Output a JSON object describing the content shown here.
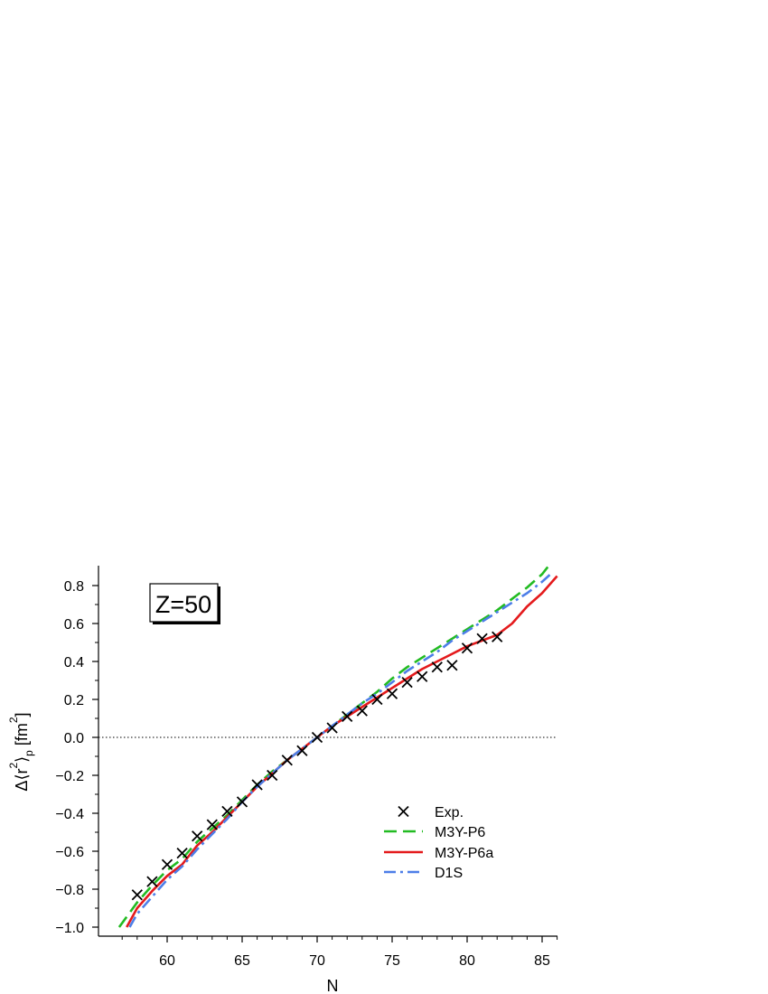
{
  "chart_data": {
    "type": "line",
    "title": "",
    "annotation": "Z=50",
    "xlabel": "N",
    "ylabel": {
      "main": "Δ⟨r",
      "sup1": "2",
      "close": "⟩",
      "sub": "p",
      "unit_open": " [fm",
      "sup2": "2",
      "unit_close": "]"
    },
    "xlim": [
      56,
      86
    ],
    "ylim": [
      -1.05,
      0.9
    ],
    "x_ticks": [
      60,
      65,
      70,
      75,
      80,
      85
    ],
    "x_tick_labels": [
      "60",
      "65",
      "70",
      "75",
      "80",
      "85"
    ],
    "y_ticks": [
      -1.0,
      -0.8,
      -0.6,
      -0.4,
      -0.2,
      0.0,
      0.2,
      0.4,
      0.6,
      0.8
    ],
    "y_tick_labels": [
      "−1.0",
      "−0.8",
      "−0.6",
      "−0.4",
      "−0.2",
      "0.0",
      "0.2",
      "0.4",
      "0.6",
      "0.8"
    ],
    "reference_line": {
      "y": 0,
      "style": "dotted"
    },
    "legend_position": "lower-right",
    "series": [
      {
        "name": "Exp.",
        "kind": "scatter",
        "marker": "x",
        "color": "#000000",
        "x": [
          58,
          59,
          60,
          61,
          62,
          63,
          64,
          65,
          66,
          67,
          68,
          69,
          70,
          71,
          72,
          73,
          74,
          75,
          76,
          77,
          78,
          79,
          80,
          81,
          82
        ],
        "y": [
          -0.83,
          -0.76,
          -0.67,
          -0.61,
          -0.52,
          -0.46,
          -0.39,
          -0.34,
          -0.25,
          -0.2,
          -0.12,
          -0.07,
          0.0,
          0.05,
          0.11,
          0.14,
          0.2,
          0.23,
          0.29,
          0.32,
          0.37,
          0.38,
          0.47,
          0.52,
          0.53
        ]
      },
      {
        "name": "M3Y-P6",
        "kind": "line",
        "style": "dashed",
        "color": "#22bb22",
        "x": [
          56.8,
          58,
          59,
          60,
          61,
          62,
          63,
          64,
          65,
          66,
          67,
          68,
          69,
          70,
          71,
          72,
          73,
          74,
          75,
          76,
          77,
          78,
          79,
          80,
          81,
          82,
          83,
          84,
          85,
          85.4
        ],
        "y": [
          -1.0,
          -0.87,
          -0.78,
          -0.7,
          -0.64,
          -0.55,
          -0.48,
          -0.41,
          -0.33,
          -0.25,
          -0.18,
          -0.12,
          -0.06,
          0.0,
          0.06,
          0.12,
          0.18,
          0.24,
          0.31,
          0.37,
          0.42,
          0.47,
          0.52,
          0.57,
          0.62,
          0.67,
          0.73,
          0.79,
          0.86,
          0.9
        ]
      },
      {
        "name": "M3Y-P6a",
        "kind": "line",
        "style": "solid",
        "color": "#e41a1c",
        "x": [
          57.3,
          58,
          59,
          60,
          61,
          62,
          63,
          64,
          65,
          66,
          67,
          68,
          69,
          70,
          71,
          72,
          73,
          74,
          75,
          76,
          77,
          78,
          79,
          80,
          81,
          82,
          83,
          84,
          85,
          86
        ],
        "y": [
          -1.0,
          -0.9,
          -0.81,
          -0.73,
          -0.67,
          -0.57,
          -0.5,
          -0.42,
          -0.34,
          -0.26,
          -0.19,
          -0.12,
          -0.06,
          0.0,
          0.06,
          0.11,
          0.16,
          0.21,
          0.26,
          0.31,
          0.36,
          0.4,
          0.44,
          0.48,
          0.51,
          0.54,
          0.6,
          0.69,
          0.76,
          0.85
        ]
      },
      {
        "name": "D1S",
        "kind": "line",
        "style": "dashdot",
        "color": "#4d7ee8",
        "x": [
          57.5,
          58,
          59,
          60,
          61,
          62,
          63,
          64,
          65,
          66,
          67,
          68,
          69,
          70,
          71,
          72,
          73,
          74,
          75,
          76,
          77,
          78,
          79,
          80,
          81,
          82,
          83,
          84,
          85,
          85.7
        ],
        "y": [
          -1.0,
          -0.93,
          -0.84,
          -0.75,
          -0.68,
          -0.59,
          -0.51,
          -0.43,
          -0.34,
          -0.26,
          -0.19,
          -0.12,
          -0.06,
          0.0,
          0.06,
          0.12,
          0.18,
          0.23,
          0.29,
          0.35,
          0.4,
          0.45,
          0.51,
          0.56,
          0.61,
          0.66,
          0.71,
          0.76,
          0.82,
          0.87
        ]
      }
    ]
  }
}
